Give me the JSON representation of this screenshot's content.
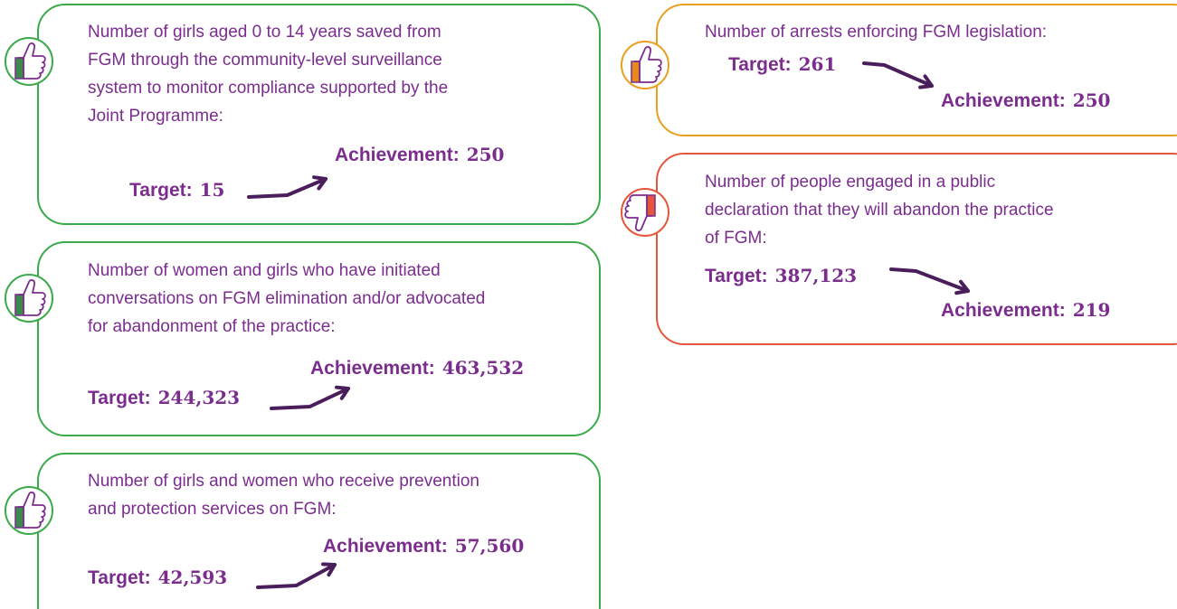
{
  "cards": [
    {
      "description": [
        "Number of girls aged 0 to 14 years saved from",
        "FGM through the community-level surveillance",
        "system to monitor compliance supported by the",
        "Joint Programme:"
      ],
      "target": {
        "label": "Target:",
        "value": "15"
      },
      "achievement": {
        "label": "Achievement:",
        "value": "250"
      }
    },
    {
      "description": [
        "Number of women and girls who have initiated",
        "conversations on FGM elimination and/or advocated",
        "for abandonment of the practice:"
      ],
      "target": {
        "label": "Target:",
        "value": "244,323"
      },
      "achievement": {
        "label": "Achievement:",
        "value": "463,532"
      }
    },
    {
      "description": [
        "Number of girls and women who receive prevention",
        "and protection services on FGM:"
      ],
      "target": {
        "label": "Target:",
        "value": "42,593"
      },
      "achievement": {
        "label": "Achievement:",
        "value": "57,560"
      }
    },
    {
      "description": [
        "Number of arrests enforcing FGM legislation:"
      ],
      "target": {
        "label": "Target:",
        "value": "261"
      },
      "achievement": {
        "label": "Achievement:",
        "value": "250"
      }
    },
    {
      "description": [
        "Number of people engaged in a public",
        "declaration that they will abandon the practice",
        "of FGM:"
      ],
      "target": {
        "label": "Target:",
        "value": "387,123"
      },
      "achievement": {
        "label": "Achievement:",
        "value": "219"
      }
    }
  ]
}
